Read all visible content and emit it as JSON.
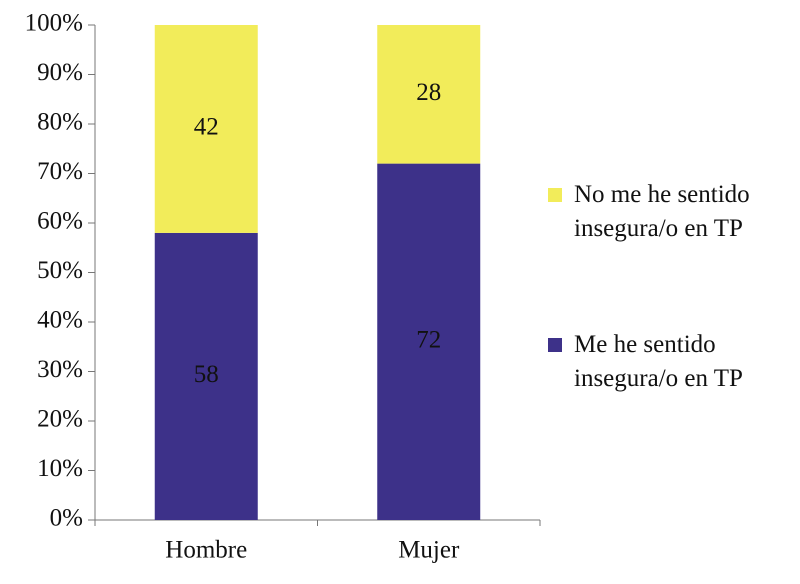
{
  "chart_data": {
    "type": "stacked-bar",
    "categories": [
      "Hombre",
      "Mujer"
    ],
    "series": [
      {
        "name": "Me he sentido insegura/o en TP",
        "color": "#3d3189",
        "values": [
          58,
          72
        ]
      },
      {
        "name": "No me he sentido insegura/o en TP",
        "color": "#f2ec5a",
        "values": [
          42,
          28
        ]
      }
    ],
    "ylim": [
      0,
      100
    ],
    "yticks": [
      {
        "value": 0,
        "label": "0%"
      },
      {
        "value": 10,
        "label": "10%"
      },
      {
        "value": 20,
        "label": "20%"
      },
      {
        "value": 30,
        "label": "30%"
      },
      {
        "value": 40,
        "label": "40%"
      },
      {
        "value": 50,
        "label": "50%"
      },
      {
        "value": 60,
        "label": "60%"
      },
      {
        "value": 70,
        "label": "70%"
      },
      {
        "value": 80,
        "label": "80%"
      },
      {
        "value": 90,
        "label": "90%"
      },
      {
        "value": 100,
        "label": "100%"
      }
    ]
  }
}
